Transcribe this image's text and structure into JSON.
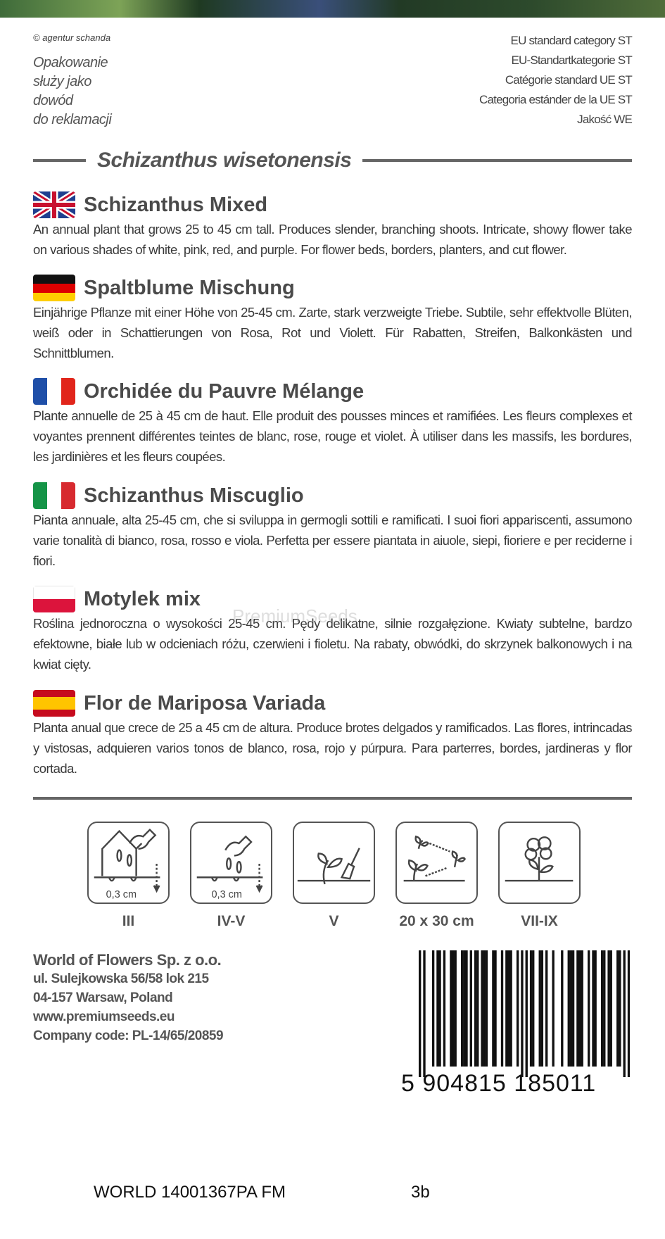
{
  "header": {
    "credit": "© agentur schanda",
    "claim": [
      "Opakowanie",
      "służy jako",
      "dowód",
      "do reklamacji"
    ],
    "categories": [
      "EU standard category ST",
      "EU-Standartkategorie ST",
      "Catégorie standard UE ST",
      "Categoria estánder de la UE ST",
      "Jakość WE"
    ]
  },
  "latin_name": "Schizanthus wisetonensis",
  "sections": [
    {
      "flag": "uk",
      "title": "Schizanthus Mixed",
      "text": "An annual plant that grows 25 to 45 cm tall. Produces slender, branching shoots. Intricate, showy flower take on various shades of white, pink, red, and purple. For flower beds, borders, planters, and cut flower."
    },
    {
      "flag": "de",
      "title": "Spaltblume Mischung",
      "text": "Einjährige Pflanze mit einer Höhe von 25-45 cm. Zarte, stark verzweigte Triebe. Subtile, sehr effektvolle Blüten, weiß oder in Schattierungen von Rosa, Rot und Violett. Für Rabatten, Streifen, Balkonkästen und Schnittblumen."
    },
    {
      "flag": "fr",
      "title": "Orchidée du Pauvre Mélange",
      "text": "Plante annuelle de 25 à 45 cm de haut. Elle produit des pousses minces et ramifiées. Les fleurs complexes et voyantes prennent différentes teintes de blanc, rose, rouge et violet. À utiliser dans les massifs, les bordures, les jardinières et les fleurs coupées."
    },
    {
      "flag": "it",
      "title": "Schizanthus Miscuglio",
      "text": "Pianta annuale, alta 25-45 cm, che si sviluppa in germogli sottili e ramificati. I suoi fiori appariscenti, assumono varie tonalità di bianco, rosa, rosso e viola. Perfetta per essere piantata in aiuole, siepi, fioriere e per reciderne i fiori."
    },
    {
      "flag": "pl",
      "title": "Motylek mix",
      "text": "Roślina jednoroczna o wysokości 25-45 cm. Pędy delikatne, silnie rozgałęzione. Kwiaty subtelne, bardzo efektowne, białe lub w odcieniach różu, czerwieni i fioletu. Na rabaty, obwódki, do skrzynek balkonowych i na kwiat cięty."
    },
    {
      "flag": "es",
      "title": "Flor de Mariposa Variada",
      "text": "Planta anual que crece de 25 a 45 cm de altura. Produce brotes delgados y ramificados. Las flores, intrincadas y vistosas, adquieren varios tonos de blanco, rosa, rojo y púrpura. Para parterres, bordes, jardineras y flor cortada."
    }
  ],
  "watermark": "PremiumSeeds",
  "icons": [
    {
      "name": "greenhouse-sowing-icon",
      "depth": "0,3 cm",
      "label": "III"
    },
    {
      "name": "outdoor-sowing-icon",
      "depth": "0,3 cm",
      "label": "IV-V"
    },
    {
      "name": "transplanting-icon",
      "label": "V"
    },
    {
      "name": "spacing-icon",
      "label": "20 x 30 cm"
    },
    {
      "name": "flowering-icon",
      "label": "VII-IX"
    }
  ],
  "company": {
    "name": "World of Flowers Sp. z o.o.",
    "address1": "ul. Sulejkowska 56/58 lok 215",
    "address2": "04-157 Warsaw, Poland",
    "website": "www.premiumseeds.eu",
    "code": "Company code: PL-14/65/20859"
  },
  "barcode": "5904815185011",
  "barcode_display": "5 904815 185011",
  "footer": {
    "code": "WORLD 14001367PA  FM",
    "version": "3b"
  }
}
